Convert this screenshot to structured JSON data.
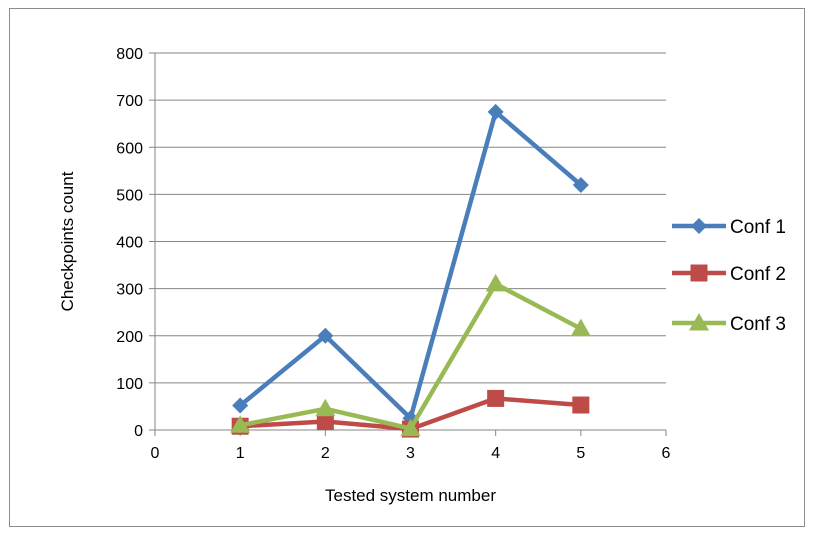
{
  "chart_data": {
    "type": "scatter",
    "title": "",
    "xlabel": "Tested system number",
    "ylabel": "Checkpoints count",
    "xlim": [
      0,
      6
    ],
    "ylim": [
      0,
      800
    ],
    "xticks": [
      0,
      1,
      2,
      3,
      4,
      5,
      6
    ],
    "yticks": [
      0,
      100,
      200,
      300,
      400,
      500,
      600,
      700,
      800
    ],
    "grid": "horizontal",
    "legend_position": "right",
    "series": [
      {
        "name": "Conf 1",
        "color": "#4a7ebb",
        "marker": "diamond",
        "x": [
          1,
          2,
          3,
          4,
          5
        ],
        "y": [
          52,
          200,
          25,
          675,
          520
        ]
      },
      {
        "name": "Conf 2",
        "color": "#be4b48",
        "marker": "square",
        "x": [
          1,
          2,
          3,
          4,
          5
        ],
        "y": [
          8,
          18,
          2,
          67,
          53
        ]
      },
      {
        "name": "Conf 3",
        "color": "#98b954",
        "marker": "triangle",
        "x": [
          1,
          2,
          3,
          4,
          5
        ],
        "y": [
          10,
          45,
          3,
          310,
          215
        ]
      }
    ]
  }
}
